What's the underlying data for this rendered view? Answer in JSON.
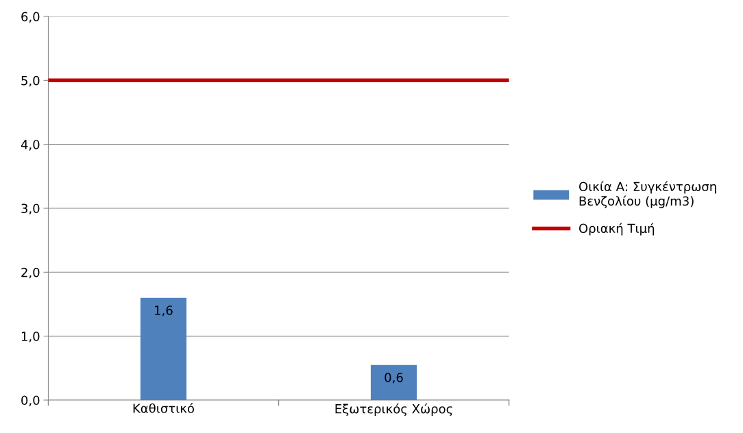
{
  "chart_data": {
    "type": "bar",
    "categories": [
      "Καθιστικό",
      "Εξωτερικός Χώρος"
    ],
    "series": [
      {
        "name": "Οικία Α: Συγκέντρωση\nΒενζολίου (μg/m3)",
        "color": "#4f81bd",
        "values": [
          1.6,
          0.55
        ],
        "value_labels": [
          "1,6",
          "0,6"
        ]
      }
    ],
    "ylim": [
      0,
      6
    ],
    "yticks": [
      {
        "value": 0,
        "label": "0,0"
      },
      {
        "value": 1,
        "label": "1,0"
      },
      {
        "value": 2,
        "label": "2,0"
      },
      {
        "value": 3,
        "label": "3,0"
      },
      {
        "value": 4,
        "label": "4,0"
      },
      {
        "value": 5,
        "label": "5,0"
      },
      {
        "value": 6,
        "label": "6,0"
      }
    ],
    "ref_lines": [
      {
        "axis": "y",
        "value": 5,
        "label": "Οριακή Τιμή",
        "color": "#c00000",
        "line_style": "solid"
      }
    ],
    "grid": "y",
    "legend": "right"
  }
}
